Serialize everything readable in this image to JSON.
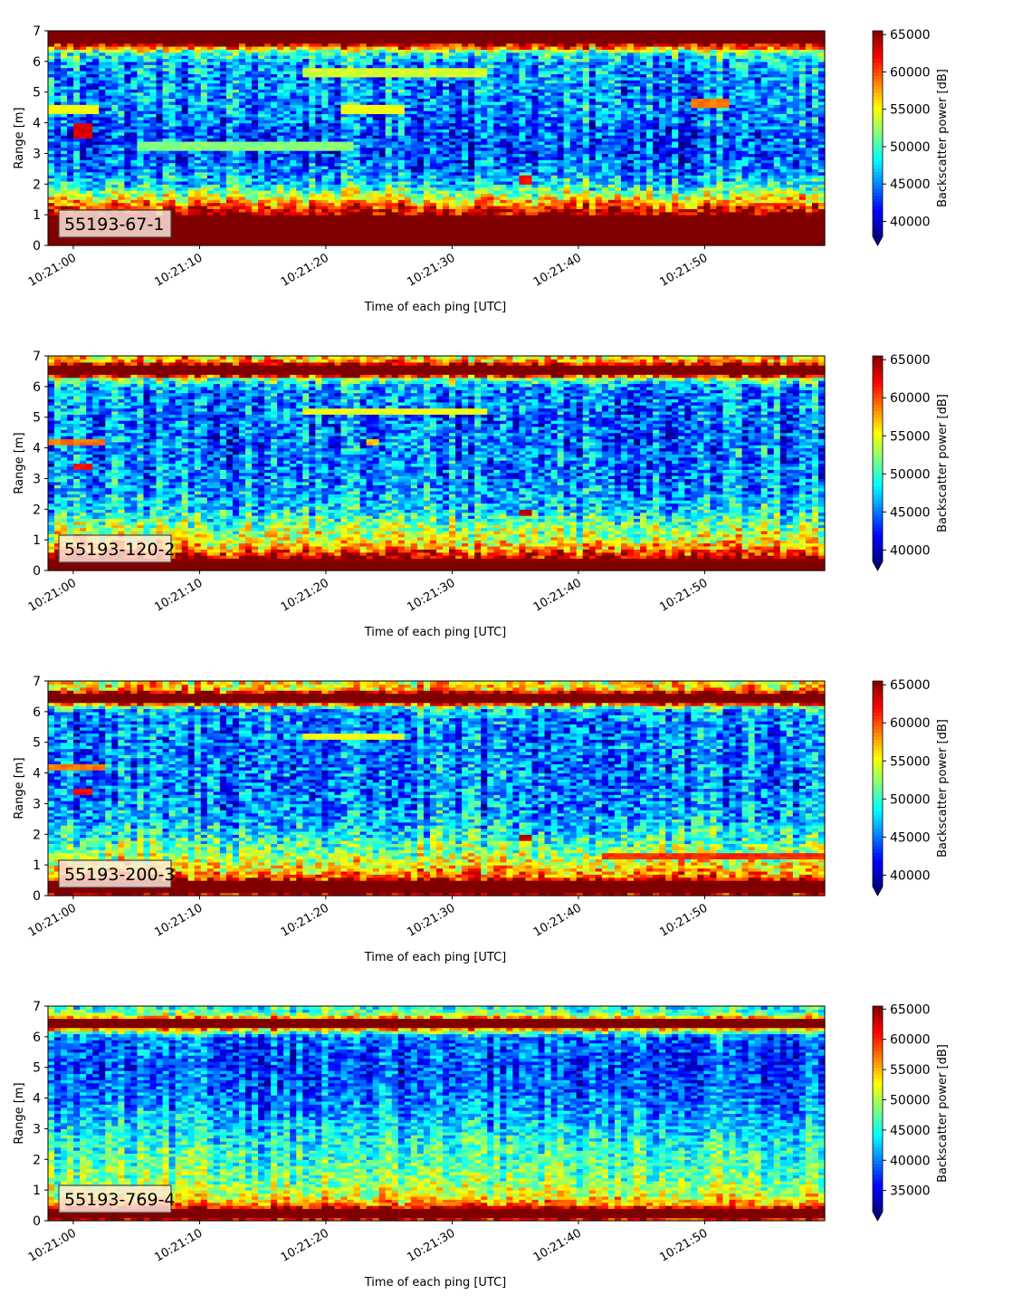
{
  "chart_data": [
    {
      "type": "heatmap",
      "label": "55193-67-1",
      "xlabel": "Time of each ping [UTC]",
      "ylabel": "Range [m]",
      "xlim": [
        "10:20:58",
        "10:21:59.5"
      ],
      "x_ticks": [
        "10:21:00",
        "10:21:10",
        "10:21:20",
        "10:21:30",
        "10:21:40",
        "10:21:50"
      ],
      "ylim": [
        0,
        7
      ],
      "y_ticks": [
        0,
        1,
        2,
        3,
        4,
        5,
        6,
        7
      ],
      "colorbar": {
        "label": "Backscatter power [dB]",
        "range": [
          38000,
          65500
        ],
        "ticks": [
          40000,
          45000,
          50000,
          55000,
          60000,
          65000
        ],
        "tick_labels": [
          "40000",
          "45000",
          "50000",
          "55000",
          "60000",
          "65000"
        ],
        "extend": "min",
        "colormap": "jet"
      },
      "profile": [
        [
          0,
          66000
        ],
        [
          0.2,
          66000
        ],
        [
          0.45,
          66000
        ],
        [
          0.9,
          66000
        ],
        [
          1.1,
          64000
        ],
        [
          1.5,
          56000
        ],
        [
          2.0,
          48000
        ],
        [
          2.5,
          45000
        ],
        [
          3.0,
          43500
        ],
        [
          3.5,
          43500
        ],
        [
          4.0,
          44500
        ],
        [
          4.5,
          45500
        ],
        [
          5.0,
          45500
        ],
        [
          5.5,
          45500
        ],
        [
          6.0,
          46500
        ],
        [
          6.3,
          50000
        ],
        [
          6.45,
          58000
        ],
        [
          6.6,
          66000
        ],
        [
          7.0,
          66000
        ]
      ],
      "features": [
        {
          "t0": "10:21:00",
          "t1": "10:21:01.5",
          "r0": 3.5,
          "r1": 4.0,
          "value": 63000
        },
        {
          "t0": "10:20:58",
          "t1": "10:21:02",
          "r0": 4.3,
          "r1": 4.6,
          "value": 55000
        },
        {
          "t0": "10:21:05",
          "t1": "10:21:22",
          "r0": 3.1,
          "r1": 3.4,
          "value": 52000
        },
        {
          "t0": "10:21:18",
          "t1": "10:21:33",
          "r0": 5.5,
          "r1": 5.8,
          "value": 54000
        },
        {
          "t0": "10:21:21",
          "t1": "10:21:26",
          "r0": 4.3,
          "r1": 4.6,
          "value": 55000
        },
        {
          "t0": "10:21:35.5",
          "t1": "10:21:36.3",
          "r0": 2.0,
          "r1": 2.3,
          "value": 62000
        },
        {
          "t0": "10:21:49",
          "t1": "10:21:52",
          "r0": 4.5,
          "r1": 4.8,
          "value": 59000
        }
      ]
    },
    {
      "type": "heatmap",
      "label": "55193-120-2",
      "xlabel": "Time of each ping [UTC]",
      "ylabel": "Range [m]",
      "xlim": [
        "10:20:58",
        "10:21:59.5"
      ],
      "x_ticks": [
        "10:21:00",
        "10:21:10",
        "10:21:20",
        "10:21:30",
        "10:21:40",
        "10:21:50"
      ],
      "ylim": [
        0,
        7
      ],
      "y_ticks": [
        0,
        1,
        2,
        3,
        4,
        5,
        6,
        7
      ],
      "colorbar": {
        "label": "Backscatter power [dB]",
        "range": [
          38500,
          65500
        ],
        "ticks": [
          40000,
          45000,
          50000,
          55000,
          60000,
          65000
        ],
        "tick_labels": [
          "40000",
          "45000",
          "50000",
          "55000",
          "60000",
          "65000"
        ],
        "extend": "min",
        "colormap": "jet"
      },
      "profile": [
        [
          0,
          66000
        ],
        [
          0.3,
          66000
        ],
        [
          0.5,
          63000
        ],
        [
          0.75,
          58000
        ],
        [
          1.0,
          55000
        ],
        [
          1.5,
          52000
        ],
        [
          2.0,
          48000
        ],
        [
          2.5,
          46500
        ],
        [
          3.0,
          45500
        ],
        [
          4.0,
          45000
        ],
        [
          5.0,
          45000
        ],
        [
          6.0,
          46000
        ],
        [
          6.25,
          52000
        ],
        [
          6.4,
          66000
        ],
        [
          6.7,
          66000
        ],
        [
          6.85,
          58000
        ],
        [
          7.0,
          56000
        ]
      ],
      "features": [
        {
          "t0": "10:20:58",
          "t1": "10:21:02.5",
          "r0": 4.1,
          "r1": 4.3,
          "value": 59000
        },
        {
          "t0": "10:21:00",
          "t1": "10:21:01.5",
          "r0": 3.35,
          "r1": 3.55,
          "value": 62000
        },
        {
          "t0": "10:21:18",
          "t1": "10:21:33",
          "r0": 5.1,
          "r1": 5.3,
          "value": 55000
        },
        {
          "t0": "10:21:23",
          "t1": "10:21:24",
          "r0": 4.1,
          "r1": 4.3,
          "value": 57000
        },
        {
          "t0": "10:21:35.5",
          "t1": "10:21:36.3",
          "r0": 1.8,
          "r1": 2.0,
          "value": 64000
        }
      ]
    },
    {
      "type": "heatmap",
      "label": "55193-200-3",
      "xlabel": "Time of each ping [UTC]",
      "ylabel": "Range [m]",
      "xlim": [
        "10:20:58",
        "10:21:59.5"
      ],
      "x_ticks": [
        "10:21:00",
        "10:21:10",
        "10:21:20",
        "10:21:30",
        "10:21:40",
        "10:21:50"
      ],
      "ylim": [
        0,
        7
      ],
      "y_ticks": [
        0,
        1,
        2,
        3,
        4,
        5,
        6,
        7
      ],
      "colorbar": {
        "label": "Backscatter power [dB]",
        "range": [
          38500,
          65500
        ],
        "ticks": [
          40000,
          45000,
          50000,
          55000,
          60000,
          65000
        ],
        "tick_labels": [
          "40000",
          "45000",
          "50000",
          "55000",
          "60000",
          "65000"
        ],
        "extend": "min",
        "colormap": "jet"
      },
      "profile": [
        [
          0,
          62000
        ],
        [
          0.1,
          66000
        ],
        [
          0.45,
          66000
        ],
        [
          0.6,
          60000
        ],
        [
          0.9,
          56000
        ],
        [
          1.3,
          53000
        ],
        [
          1.8,
          50000
        ],
        [
          2.3,
          47000
        ],
        [
          3.0,
          45500
        ],
        [
          4.0,
          45000
        ],
        [
          5.0,
          45000
        ],
        [
          6.0,
          45500
        ],
        [
          6.2,
          52000
        ],
        [
          6.3,
          66000
        ],
        [
          6.6,
          66000
        ],
        [
          6.75,
          57000
        ],
        [
          7.0,
          55000
        ]
      ],
      "features": [
        {
          "t0": "10:20:58",
          "t1": "10:21:02.5",
          "r0": 4.1,
          "r1": 4.3,
          "value": 59000
        },
        {
          "t0": "10:21:00",
          "t1": "10:21:01.5",
          "r0": 3.35,
          "r1": 3.55,
          "value": 62000
        },
        {
          "t0": "10:21:18",
          "t1": "10:21:26",
          "r0": 5.15,
          "r1": 5.3,
          "value": 55000
        },
        {
          "t0": "10:21:35.5",
          "t1": "10:21:36.3",
          "r0": 1.8,
          "r1": 2.0,
          "value": 64000
        },
        {
          "t0": "10:21:42",
          "t1": "10:21:59.5",
          "r0": 1.25,
          "r1": 1.4,
          "value": 61000
        }
      ]
    },
    {
      "type": "heatmap",
      "label": "55193-769-4",
      "xlabel": "Time of each ping [UTC]",
      "ylabel": "Range [m]",
      "xlim": [
        "10:20:58",
        "10:21:59.5"
      ],
      "x_ticks": [
        "10:21:00",
        "10:21:10",
        "10:21:20",
        "10:21:30",
        "10:21:40",
        "10:21:50"
      ],
      "ylim": [
        0,
        7
      ],
      "y_ticks": [
        0,
        1,
        2,
        3,
        4,
        5,
        6,
        7
      ],
      "colorbar": {
        "label": "Backscatter power [dB]",
        "range": [
          31500,
          65500
        ],
        "ticks": [
          35000,
          40000,
          45000,
          50000,
          55000,
          60000,
          65000
        ],
        "tick_labels": [
          "35000",
          "40000",
          "45000",
          "50000",
          "55000",
          "60000",
          "65000"
        ],
        "extend": "min",
        "colormap": "jet"
      },
      "profile": [
        [
          0,
          58000
        ],
        [
          0.1,
          66000
        ],
        [
          0.35,
          66000
        ],
        [
          0.55,
          57000
        ],
        [
          0.8,
          52000
        ],
        [
          1.2,
          49000
        ],
        [
          1.8,
          47000
        ],
        [
          2.5,
          45000
        ],
        [
          3.0,
          43000
        ],
        [
          4.0,
          39500
        ],
        [
          5.0,
          38000
        ],
        [
          6.0,
          39000
        ],
        [
          6.2,
          50000
        ],
        [
          6.35,
          66000
        ],
        [
          6.55,
          66000
        ],
        [
          6.7,
          50000
        ],
        [
          7.0,
          44000
        ]
      ],
      "features": []
    }
  ]
}
